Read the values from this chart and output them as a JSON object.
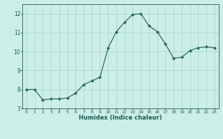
{
  "x": [
    0,
    1,
    2,
    3,
    4,
    5,
    6,
    7,
    8,
    9,
    10,
    11,
    12,
    13,
    14,
    15,
    16,
    17,
    18,
    19,
    20,
    21,
    22,
    23
  ],
  "y": [
    8.0,
    8.0,
    7.45,
    7.5,
    7.5,
    7.55,
    7.8,
    8.25,
    8.45,
    8.65,
    10.2,
    11.05,
    11.55,
    11.95,
    12.0,
    11.35,
    11.05,
    10.4,
    9.65,
    9.7,
    10.05,
    10.2,
    10.25,
    10.2
  ],
  "line_color": "#2a6b5e",
  "marker": "D",
  "marker_size": 2.2,
  "bg_color": "#cceee8",
  "grid_color": "#aad8d0",
  "tick_color": "#1a5c50",
  "xlabel": "Humidex (Indice chaleur)",
  "ylim": [
    7.0,
    12.5
  ],
  "xlim": [
    -0.5,
    23.5
  ],
  "yticks": [
    7,
    8,
    9,
    10,
    11,
    12
  ],
  "xticks": [
    0,
    1,
    2,
    3,
    4,
    5,
    6,
    7,
    8,
    9,
    10,
    11,
    12,
    13,
    14,
    15,
    16,
    17,
    18,
    19,
    20,
    21,
    22,
    23
  ]
}
